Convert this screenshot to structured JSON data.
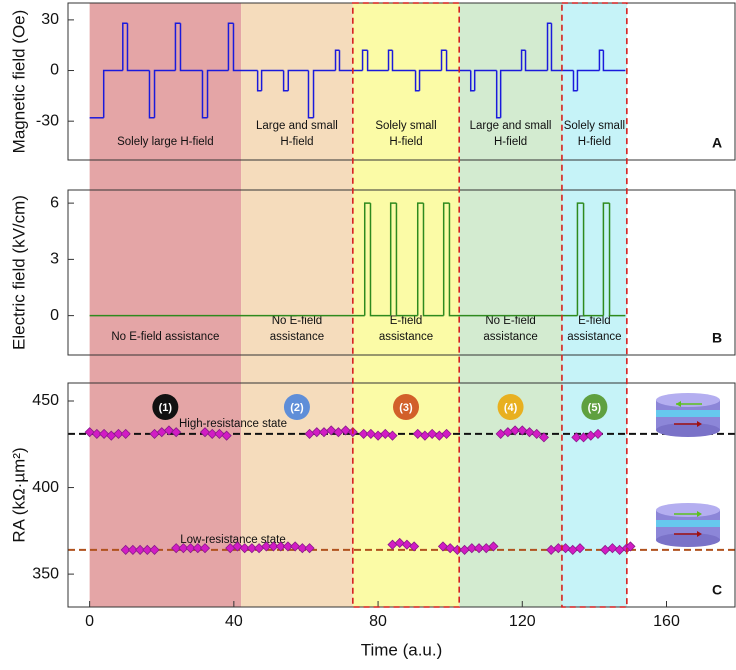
{
  "regions": [
    {
      "start": 0,
      "end": 42,
      "color": "#e4a5a6",
      "h_label": [
        "Solely large H-field"
      ],
      "e_label": [
        "No E-field assistance"
      ],
      "badge": "(1)",
      "badge_color": "#111111",
      "dashed": false
    },
    {
      "start": 42,
      "end": 73,
      "color": "#f5dcbc",
      "h_label": [
        "Large and small",
        "H-field"
      ],
      "e_label": [
        "No E-field",
        "assistance"
      ],
      "badge": "(2)",
      "badge_color": "#5f8ed8",
      "dashed": false
    },
    {
      "start": 73,
      "end": 102.5,
      "color": "#fbfba6",
      "h_label": [
        "Solely small",
        "H-field"
      ],
      "e_label": [
        "E-field",
        "assistance"
      ],
      "badge": "(3)",
      "badge_color": "#d2602a",
      "dashed": true
    },
    {
      "start": 102.5,
      "end": 131,
      "color": "#d3ebd0",
      "h_label": [
        "Large and small",
        "H-field"
      ],
      "e_label": [
        "No E-field",
        "assistance"
      ],
      "badge": "(4)",
      "badge_color": "#e8b020",
      "dashed": false
    },
    {
      "start": 131,
      "end": 149,
      "color": "#c6f3f8",
      "h_label": [
        "Solely small",
        "H-field"
      ],
      "e_label": [
        "E-field",
        "assistance"
      ],
      "badge": "(5)",
      "badge_color": "#5fa040",
      "dashed": true
    }
  ],
  "chart_data": [
    {
      "type": "line",
      "step": "post",
      "ylabel": "Magnetic field (Oe)",
      "panel_label": "A",
      "region_text": "h_label",
      "color": "#1a1adc",
      "xlim": [
        -6,
        179
      ],
      "ylim": [
        -53,
        40
      ],
      "yticks": [
        -30,
        0,
        30
      ],
      "x": [
        0,
        3.9,
        9.2,
        10.5,
        16.6,
        18,
        23.8,
        25.2,
        31.3,
        32.7,
        38.5,
        39.9,
        46.6,
        47.7,
        53.8,
        55.1,
        60.7,
        62.1,
        68.2,
        69.3,
        75.7,
        77.1,
        82.9,
        84,
        90.4,
        91.5,
        97.6,
        99,
        105.7,
        106.8,
        112.9,
        114,
        119.8,
        120.9,
        127,
        128.1,
        134.2,
        135.3,
        141.4,
        142.5,
        148.6
      ],
      "values": [
        -28,
        0,
        28,
        0,
        -28,
        0,
        28,
        0,
        -28,
        0,
        28,
        0,
        -12,
        0,
        -12,
        0,
        -28,
        0,
        12,
        0,
        12,
        0,
        12,
        0,
        -12,
        0,
        12,
        0,
        -12,
        0,
        -28,
        0,
        12,
        0,
        28,
        0,
        -12,
        0,
        12,
        0,
        0
      ]
    },
    {
      "type": "line",
      "step": "post",
      "ylabel": "Electric field (kV/cm)",
      "panel_label": "B",
      "region_text": "e_label",
      "color": "#2e8a1e",
      "xlim": [
        -6,
        179
      ],
      "ylim": [
        -2.1,
        6.7
      ],
      "yticks": [
        0,
        3,
        6
      ],
      "x": [
        0,
        76.3,
        77.9,
        83.5,
        85.1,
        91,
        92.6,
        98.2,
        99.8,
        135.3,
        137,
        142.5,
        144.2,
        148.6
      ],
      "values": [
        0,
        6,
        0,
        6,
        0,
        6,
        0,
        6,
        0,
        6,
        0,
        6,
        0,
        0
      ]
    },
    {
      "type": "scatter",
      "ylabel": "RA (kΩ·µm²)",
      "xlabel": "Time (a.u.)",
      "panel_label": "C",
      "color": "#d21cc4",
      "edge_color": "#8a1a8a",
      "xlim": [
        -6,
        179
      ],
      "ylim": [
        331,
        460.4
      ],
      "yticks": [
        350,
        400,
        450
      ],
      "xticks": [
        0,
        40,
        80,
        120,
        160
      ],
      "x": [
        0,
        2,
        4,
        6,
        8,
        10,
        18,
        20,
        22,
        24,
        32,
        34,
        36,
        38,
        61,
        63,
        65,
        67,
        69,
        71,
        73,
        76,
        78,
        80,
        82,
        84,
        91,
        93,
        95,
        97,
        99,
        114,
        116,
        118,
        120,
        122,
        124,
        126,
        135,
        137,
        139,
        141,
        10,
        12,
        14,
        16,
        18,
        24,
        26,
        28,
        30,
        32,
        39,
        41,
        43,
        45,
        47,
        49,
        51,
        53,
        55,
        57,
        59,
        61,
        84,
        86,
        88,
        90,
        98,
        100,
        102,
        104,
        106,
        108,
        110,
        112,
        128,
        130,
        132,
        134,
        136,
        143,
        145,
        147,
        149,
        150
      ],
      "values": [
        432,
        431,
        431,
        430,
        431,
        431,
        431,
        432,
        433,
        432,
        432,
        431,
        431,
        430,
        431,
        432,
        432,
        433,
        432,
        433,
        432,
        431,
        431,
        430,
        431,
        430,
        431,
        430,
        431,
        430,
        431,
        431,
        432,
        433,
        433,
        432,
        431,
        429,
        429,
        429,
        430,
        431,
        364,
        364,
        364,
        364,
        364,
        365,
        365,
        365,
        365,
        365,
        365,
        366,
        365,
        365,
        365,
        366,
        366,
        366,
        366,
        366,
        365,
        365,
        367,
        368,
        367,
        366,
        366,
        365,
        364,
        364,
        365,
        365,
        365,
        366,
        364,
        365,
        365,
        364,
        365,
        364,
        365,
        364,
        365,
        366
      ],
      "reference_lines": [
        {
          "value": 431,
          "color": "#111111",
          "label": "High-resistance state"
        },
        {
          "value": 364,
          "color": "#b0521e",
          "label": "Low-resistance state"
        }
      ]
    }
  ]
}
